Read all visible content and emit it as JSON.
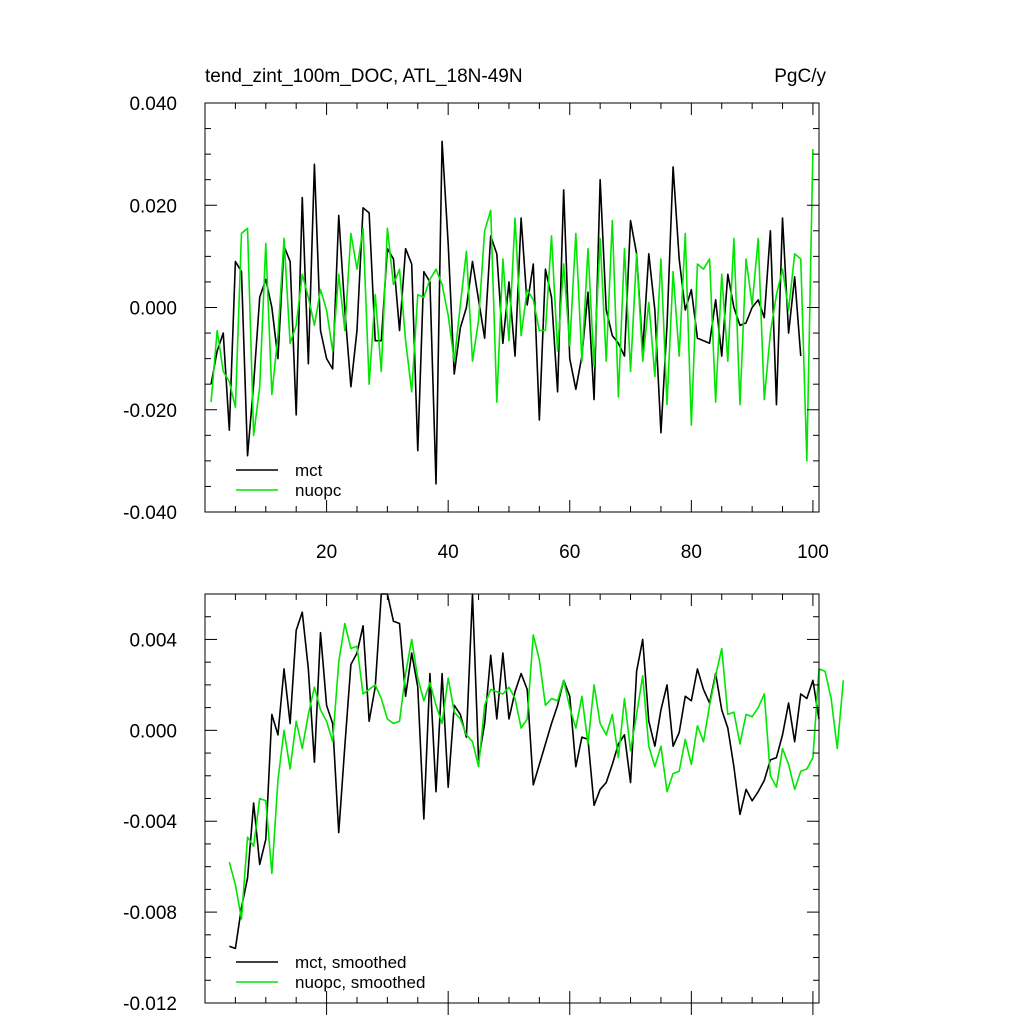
{
  "colors": {
    "mct": "#000000",
    "nuopc": "#00e600",
    "axes": "#000000",
    "background": "#ffffff"
  },
  "chart_data": [
    {
      "type": "line",
      "title": "tend_zint_100m_DOC, ATL_18N-49N",
      "units_label": "PgC/y",
      "xlabel": "",
      "ylabel": "",
      "xlim": [
        0,
        101
      ],
      "ylim": [
        -0.04,
        0.04
      ],
      "x_ticks": [
        20,
        40,
        60,
        80,
        100
      ],
      "x_tick_labels": [
        "20",
        "40",
        "60",
        "80",
        "100"
      ],
      "y_ticks": [
        -0.04,
        -0.02,
        0.0,
        0.02,
        0.04
      ],
      "y_tick_labels": [
        "-0.040",
        "-0.020",
        "0.000",
        "0.020",
        "0.040"
      ],
      "x_start": 1,
      "grid": false,
      "legend_position": "bottom-left",
      "series": [
        {
          "name": "mct",
          "color": "#000000",
          "values": [
            -0.015,
            -0.0085,
            -0.005,
            -0.024,
            0.009,
            0.007,
            -0.029,
            -0.015,
            0.002,
            0.0055,
            0.0,
            -0.01,
            0.012,
            0.009,
            -0.021,
            0.0215,
            -0.011,
            0.028,
            -0.0045,
            -0.01,
            -0.012,
            0.018,
            -0.0005,
            -0.0155,
            -0.0045,
            0.0195,
            0.0185,
            -0.0065,
            -0.0065,
            0.0115,
            0.0095,
            -0.0045,
            0.0115,
            0.0085,
            -0.028,
            0.007,
            0.005,
            -0.0345,
            0.0325,
            0.0125,
            -0.013,
            -0.004,
            0.0,
            0.009,
            0.0015,
            -0.006,
            0.014,
            0.0105,
            -0.007,
            0.005,
            -0.0095,
            0.0175,
            0.0005,
            0.0085,
            -0.022,
            0.0075,
            0.002,
            -0.0165,
            0.023,
            -0.01,
            -0.016,
            -0.0095,
            0.003,
            -0.018,
            0.025,
            -0.0005,
            -0.0055,
            -0.007,
            -0.0095,
            0.017,
            0.0105,
            -0.0085,
            0.0105,
            -0.0005,
            -0.0245,
            -0.0035,
            0.0275,
            0.0095,
            -0.0005,
            0.0035,
            -0.006,
            -0.0065,
            -0.007,
            0.0015,
            -0.0095,
            0.0065,
            0.0,
            -0.0035,
            -0.003,
            0.0,
            0.0015,
            -0.002,
            0.015,
            -0.019,
            0.0175,
            -0.005,
            0.006,
            -0.0095
          ]
        },
        {
          "name": "nuopc",
          "color": "#00e600",
          "values": [
            -0.0185,
            -0.0045,
            -0.0125,
            -0.0145,
            -0.0195,
            0.0145,
            0.0155,
            -0.025,
            -0.0155,
            0.0125,
            -0.017,
            -0.0055,
            0.0135,
            -0.007,
            -0.0035,
            0.0065,
            0.002,
            -0.0035,
            0.0035,
            -0.0005,
            -0.0085,
            0.0065,
            -0.0045,
            0.0145,
            0.0075,
            0.0155,
            -0.015,
            0.0025,
            -0.0125,
            0.0155,
            0.0045,
            0.0075,
            -0.0065,
            -0.0165,
            0.0025,
            0.002,
            0.0055,
            0.0075,
            0.0045,
            -0.0015,
            -0.0105,
            0.0005,
            0.011,
            -0.0105,
            -0.0025,
            0.015,
            0.019,
            -0.0185,
            0.0095,
            -0.0065,
            0.0175,
            -0.0055,
            0.0035,
            0.0015,
            -0.0045,
            -0.0045,
            0.014,
            -0.0085,
            0.0085,
            -0.0075,
            0.0145,
            -0.0105,
            0.0115,
            -0.0115,
            0.0135,
            -0.0105,
            0.017,
            -0.0175,
            0.0115,
            -0.0125,
            0.0105,
            -0.0105,
            0.001,
            -0.0135,
            0.0095,
            -0.019,
            0.007,
            -0.0095,
            0.0145,
            -0.023,
            0.0085,
            0.0075,
            0.0095,
            -0.0185,
            0.0065,
            -0.0105,
            0.0135,
            -0.019,
            0.0095,
            0.0005,
            0.0135,
            -0.018,
            -0.005,
            0.0025,
            0.0075,
            -0.0005,
            0.0105,
            0.0095,
            -0.03,
            0.031
          ]
        }
      ],
      "legend": [
        {
          "label": "mct",
          "color": "#000000"
        },
        {
          "label": "nuopc",
          "color": "#00e600"
        }
      ]
    },
    {
      "type": "line",
      "title": "",
      "xlabel": "",
      "ylabel": "",
      "xlim": [
        0,
        101
      ],
      "ylim": [
        -0.012,
        0.006
      ],
      "x_ticks": [
        20,
        40,
        60,
        80,
        100
      ],
      "y_ticks": [
        -0.012,
        -0.008,
        -0.004,
        0.0,
        0.004
      ],
      "y_tick_labels": [
        "-0.012",
        "-0.008",
        "-0.004",
        "0.000",
        "0.004"
      ],
      "x_start": 4,
      "grid": false,
      "legend_position": "bottom-left",
      "series": [
        {
          "name": "mct, smoothed",
          "color": "#000000",
          "values": [
            -0.0095,
            -0.0096,
            -0.0078,
            -0.0065,
            -0.0032,
            -0.0059,
            -0.0048,
            0.0007,
            -0.0002,
            0.0027,
            0.0003,
            0.0044,
            0.0052,
            0.0027,
            -0.0014,
            0.0043,
            0.0011,
            0.0003,
            -0.0045,
            -0.0007,
            0.0029,
            0.0034,
            0.0046,
            0.0004,
            0.0019,
            0.006,
            0.006,
            0.0048,
            0.0047,
            0.0015,
            0.0034,
            0.0019,
            -0.0039,
            0.0025,
            -0.0027,
            0.0025,
            -0.0025,
            0.0011,
            0.0007,
            -0.0003,
            0.006,
            -0.0013,
            0.0003,
            0.0033,
            0.0005,
            0.0034,
            0.0005,
            0.0017,
            0.0025,
            0.0018,
            -0.0024,
            -0.0015,
            -0.0006,
            0.0003,
            0.0011,
            0.0022,
            0.0015,
            -0.0016,
            -0.0003,
            -0.0004,
            -0.0033,
            -0.0026,
            -0.0023,
            -0.0015,
            -0.0006,
            -0.0002,
            -0.0023,
            0.0026,
            0.004,
            0.0004,
            -0.0007,
            0.0009,
            0.002,
            -0.0007,
            -0.0001,
            0.0015,
            0.0013,
            0.0027,
            0.0018,
            0.0012,
            0.0025,
            0.0009,
            0.0001,
            -0.0016,
            -0.0037,
            -0.0026,
            -0.0031,
            -0.0027,
            -0.0022,
            -0.0013,
            -0.0012,
            -0.0002,
            0.0012,
            -0.0005,
            0.0016,
            0.0014,
            0.0022,
            0.0005
          ]
        },
        {
          "name": "nuopc, smoothed",
          "color": "#00e600",
          "values": [
            -0.0058,
            -0.0068,
            -0.0083,
            -0.0047,
            -0.0051,
            -0.003,
            -0.0031,
            -0.0063,
            -0.0022,
            0.0,
            -0.0017,
            0.0004,
            -0.0008,
            0.0007,
            0.0019,
            0.0009,
            0.0004,
            -0.0005,
            0.003,
            0.0047,
            0.0036,
            0.0037,
            0.0016,
            0.0018,
            0.002,
            0.0014,
            0.0005,
            0.0003,
            0.0004,
            0.0025,
            0.004,
            0.0023,
            0.0013,
            0.0021,
            0.0011,
            0.0003,
            0.0023,
            0.0008,
            0.0005,
            -0.0002,
            -0.0005,
            -0.0016,
            0.0011,
            0.0018,
            0.0017,
            0.0016,
            0.0019,
            0.0014,
            0.0001,
            0.0005,
            0.0042,
            0.0031,
            0.0011,
            0.0014,
            0.0013,
            0.0022,
            0.001,
            0.0001,
            0.0015,
            -0.0006,
            0.002,
            0.0003,
            -0.0002,
            0.0007,
            -0.0012,
            0.0014,
            -0.0009,
            0.0007,
            0.0024,
            -0.0007,
            -0.0016,
            -0.0007,
            -0.0027,
            -0.0019,
            -0.0018,
            -0.0004,
            -0.0015,
            0.0002,
            -0.0005,
            0.0011,
            0.0024,
            0.0036,
            0.0007,
            0.0008,
            -0.0006,
            0.0007,
            0.0006,
            0.001,
            0.0016,
            -0.002,
            -0.0025,
            -0.0008,
            -0.0015,
            -0.0026,
            -0.0018,
            -0.0017,
            -0.0012,
            0.0027,
            0.0026,
            0.0014,
            -0.0008,
            0.0022
          ]
        }
      ],
      "legend": [
        {
          "label": "mct, smoothed",
          "color": "#000000"
        },
        {
          "label": "nuopc, smoothed",
          "color": "#00e600"
        }
      ]
    }
  ]
}
